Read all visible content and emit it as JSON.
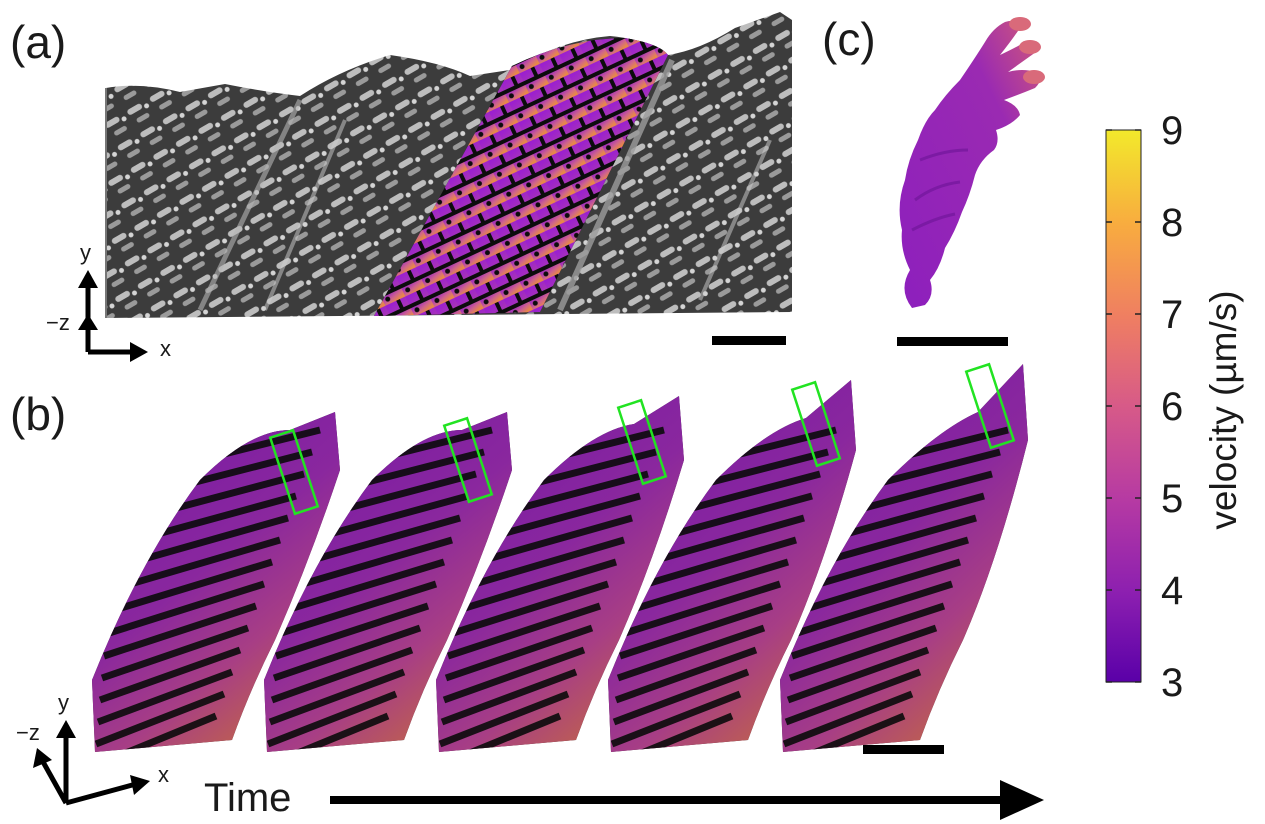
{
  "panels": {
    "a": {
      "label": "(a)"
    },
    "b": {
      "label": "(b)",
      "snapshots": 5
    },
    "c": {
      "label": "(c)"
    }
  },
  "axes": {
    "y": "y",
    "x": "x",
    "z": "−z"
  },
  "time_label": "Time",
  "colorbar": {
    "label": "velocity (µm/s)",
    "min": 3,
    "max": 9,
    "ticks": [
      "9",
      "8",
      "7",
      "6",
      "5",
      "4",
      "3"
    ],
    "colors": [
      "#5a00a8",
      "#8c1fb0",
      "#b63aa3",
      "#d75a88",
      "#ef7e62",
      "#f8ac3f",
      "#f2e92b"
    ]
  },
  "colors": {
    "structure_gray": "#8a8a8a",
    "background_dark": "#141414",
    "highlight_box": "#22e322",
    "scale_bar": "#000000"
  }
}
